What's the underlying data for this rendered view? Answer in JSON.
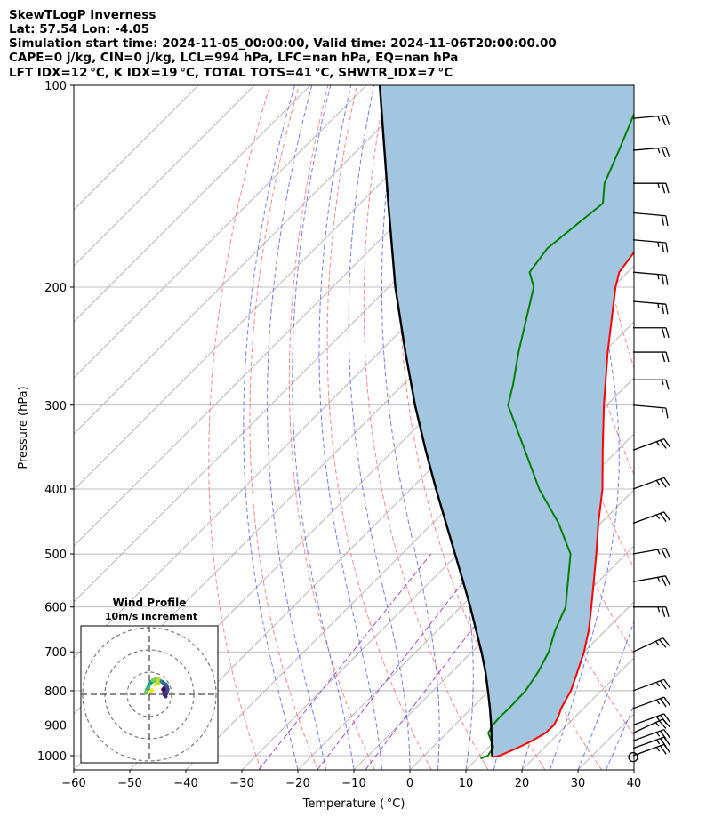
{
  "header": {
    "line1": "SkewTLogP Inverness",
    "line2": "Lat: 57.54   Lon: -4.05",
    "line3": "Simulation start time: 2024-11-05_00:00:00, Valid time: 2024-11-06T20:00:00.00",
    "line4": "CAPE=0 j/kg, CIN=0 j/kg, LCL=994 hPa, LFC=nan hPa, EQ=nan hPa",
    "line5": "LFT IDX=12 °C, K IDX=19 °C, TOTAL TOTS=41 °C, SHWTR_IDX=7 °C"
  },
  "colors": {
    "temperature": "#ff0000",
    "dewpoint": "#008000",
    "parcel": "#000000",
    "fill": "#a3c6e0",
    "isotherm": "#aaaaaa",
    "dry_adiabat": "#ff6666",
    "moist_adiabat": "#5566ee",
    "mixing_ratio": "#9933cc"
  },
  "chart_data": [
    {
      "type": "line",
      "subtype": "skew-T log-P",
      "xlabel": "Temperature ( °C)",
      "ylabel": "Pressure (hPa)",
      "xlim": [
        -60,
        40
      ],
      "ylim": [
        1050,
        100
      ],
      "x_ticks": [
        "−60",
        "−50",
        "−40",
        "−30",
        "−20",
        "−10",
        "0",
        "10",
        "20",
        "30",
        "40"
      ],
      "y_ticks": [
        "100",
        "200",
        "300",
        "400",
        "500",
        "600",
        "700",
        "800",
        "900",
        "1000"
      ],
      "grid": true,
      "series": [
        {
          "name": "Temperature",
          "pressure": [
            1005,
            1000,
            970,
            950,
            925,
            900,
            875,
            850,
            825,
            800,
            750,
            700,
            650,
            600,
            550,
            500,
            450,
            400,
            350,
            300,
            250,
            200,
            190,
            175,
            160,
            150,
            140,
            125,
            110,
            100
          ],
          "values": [
            12.5,
            13.5,
            15.5,
            16.6,
            17.6,
            17.7,
            17.0,
            16.0,
            15.3,
            14.6,
            12.4,
            10.0,
            7.0,
            3.3,
            -0.8,
            -5.3,
            -10.4,
            -15.8,
            -22.7,
            -30.5,
            -39.3,
            -49.5,
            -51.5,
            -52.6,
            -50.4,
            -49.0,
            -46.0,
            -45.0,
            -45.1,
            -45.5
          ]
        },
        {
          "name": "Dewpoint",
          "pressure": [
            1010,
            1000,
            970,
            950,
            925,
            900,
            875,
            850,
            800,
            750,
            700,
            650,
            600,
            550,
            500,
            450,
            400,
            350,
            300,
            280,
            250,
            200,
            190,
            175,
            160,
            150,
            140,
            125,
            100
          ],
          "values": [
            10.6,
            11.4,
            10.8,
            9.3,
            7.4,
            6.8,
            6.6,
            6.7,
            6.5,
            5.4,
            3.7,
            1.0,
            -1.3,
            -5.4,
            -9.9,
            -17.5,
            -27.1,
            -36.6,
            -47.6,
            -50.3,
            -55.2,
            -64.1,
            -67.5,
            -68.6,
            -67.5,
            -66.7,
            -70.0,
            -73.3,
            -80.1
          ]
        },
        {
          "name": "Parcel",
          "pressure": [
            1005,
            994,
            950,
            900,
            850,
            800,
            750,
            700,
            650,
            600,
            550,
            500,
            450,
            400,
            350,
            300,
            250,
            200,
            150,
            100
          ],
          "values": [
            12.5,
            11.8,
            9.4,
            6.5,
            3.3,
            -0.2,
            -4.0,
            -8.3,
            -13.1,
            -18.3,
            -24.1,
            -30.5,
            -37.6,
            -45.5,
            -54.3,
            -64.2,
            -75.4,
            -88.8,
            -105.0,
            -127.6
          ]
        }
      ],
      "wind_barbs": [
        {
          "pressure": 1000,
          "direction": 250,
          "speed_kt": 25
        },
        {
          "pressure": 975,
          "direction": 250,
          "speed_kt": 25
        },
        {
          "pressure": 950,
          "direction": 250,
          "speed_kt": 25
        },
        {
          "pressure": 925,
          "direction": 245,
          "speed_kt": 25
        },
        {
          "pressure": 900,
          "direction": 250,
          "speed_kt": 25
        },
        {
          "pressure": 850,
          "direction": 250,
          "speed_kt": 25
        },
        {
          "pressure": 800,
          "direction": 250,
          "speed_kt": 25
        },
        {
          "pressure": 700,
          "direction": 245,
          "speed_kt": 25
        },
        {
          "pressure": 600,
          "direction": 270,
          "speed_kt": 25
        },
        {
          "pressure": 550,
          "direction": 260,
          "speed_kt": 25
        },
        {
          "pressure": 500,
          "direction": 260,
          "speed_kt": 25
        },
        {
          "pressure": 450,
          "direction": 250,
          "speed_kt": 25
        },
        {
          "pressure": 400,
          "direction": 250,
          "speed_kt": 25
        },
        {
          "pressure": 350,
          "direction": 250,
          "speed_kt": 25
        },
        {
          "pressure": 300,
          "direction": 275,
          "speed_kt": 15
        },
        {
          "pressure": 275,
          "direction": 270,
          "speed_kt": 15
        },
        {
          "pressure": 250,
          "direction": 270,
          "speed_kt": 20
        },
        {
          "pressure": 230,
          "direction": 270,
          "speed_kt": 20
        },
        {
          "pressure": 210,
          "direction": 275,
          "speed_kt": 25
        },
        {
          "pressure": 190,
          "direction": 275,
          "speed_kt": 25
        },
        {
          "pressure": 170,
          "direction": 275,
          "speed_kt": 25
        },
        {
          "pressure": 155,
          "direction": 275,
          "speed_kt": 20
        },
        {
          "pressure": 140,
          "direction": 270,
          "speed_kt": 25
        },
        {
          "pressure": 125,
          "direction": 265,
          "speed_kt": 25
        },
        {
          "pressure": 112,
          "direction": 265,
          "speed_kt": 25
        }
      ]
    },
    {
      "type": "scatter",
      "title": "Wind Profile",
      "subtitle": "10m/s increment",
      "rings_ms": [
        10,
        20,
        30
      ],
      "u_ms": [
        6.2,
        6.8,
        7.1,
        7.0,
        6.6,
        6.9,
        7.3,
        7.6,
        8.0,
        8.2,
        7.9,
        7.5,
        7.3,
        6.5,
        5.8,
        5.0,
        4.0,
        3.0,
        2.4,
        1.6,
        1.0,
        0.5,
        0.0,
        -0.4,
        -0.6,
        -1.1,
        -1.4,
        -1.6,
        1.6,
        2.7,
        4.2,
        3.8,
        3.6,
        3.9,
        2.6,
        1.2,
        0.7
      ],
      "v_ms": [
        2.2,
        2.8,
        2.1,
        1.2,
        0.6,
        -0.3,
        -0.9,
        0.4,
        1.3,
        2.3,
        3.4,
        4.2,
        4.5,
        5.0,
        5.6,
        6.0,
        6.4,
        6.6,
        6.3,
        6.0,
        5.6,
        5.1,
        4.5,
        3.7,
        2.9,
        2.1,
        1.1,
        0.7,
        6.3,
        6.8,
        7.0,
        6.5,
        5.9,
        5.1,
        4.3,
        1.9,
        1.3
      ],
      "colormap": "viridis"
    }
  ]
}
